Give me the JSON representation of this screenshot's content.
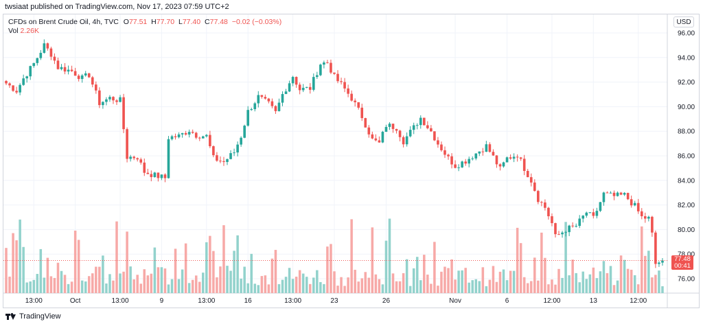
{
  "header": {
    "published": "twsiaat published on TradingView.com, Nov 17, 2023 07:59 UTC+2"
  },
  "legend": {
    "symbol": "CFDs on Brent Crude Oil, 4h, TVC",
    "o_label": "O",
    "o_value": "77.51",
    "h_label": "H",
    "h_value": "77.70",
    "l_label": "L",
    "l_value": "77.40",
    "c_label": "C",
    "c_value": "77.48",
    "change": "−0.02 (−0.03%)",
    "vol_label": "Vol",
    "vol_value": "2.26K"
  },
  "currency": "USD",
  "last_price": {
    "value": "77.48",
    "countdown": "00:41"
  },
  "footer": {
    "brand": "TradingView"
  },
  "colors": {
    "up": "#26a69a",
    "down": "#ef5350",
    "up_volume": "#92d2cc",
    "down_volume": "#f7a9a7",
    "grid": "#f0f3fa"
  },
  "chart_data": {
    "type": "candlestick",
    "title": "CFDs on Brent Crude Oil, 4h, TVC",
    "ylim": [
      74.8,
      97.0
    ],
    "y_ticks": [
      76.0,
      78.0,
      80.0,
      82.0,
      84.0,
      86.0,
      88.0,
      90.0,
      92.0,
      94.0,
      96.0
    ],
    "y_tick_labels": [
      "76.00",
      "78.00",
      "80.00",
      "82.00",
      "84.00",
      "86.00",
      "88.00",
      "90.00",
      "92.00",
      "94.00",
      "96.00"
    ],
    "x_tick_labels": [
      {
        "label": "13:00",
        "bar": 8
      },
      {
        "label": "Oct",
        "bar": 20
      },
      {
        "label": "13:00",
        "bar": 33
      },
      {
        "label": "9",
        "bar": 45
      },
      {
        "label": "13:00",
        "bar": 58
      },
      {
        "label": "16",
        "bar": 70
      },
      {
        "label": "13:00",
        "bar": 83
      },
      {
        "label": "23",
        "bar": 95
      },
      {
        "label": "26",
        "bar": 110
      },
      {
        "label": "Nov",
        "bar": 130
      },
      {
        "label": "6",
        "bar": 145
      },
      {
        "label": "12:00",
        "bar": 158
      },
      {
        "label": "13",
        "bar": 170
      },
      {
        "label": "12:00",
        "bar": 183
      }
    ],
    "close_path": [
      [
        0,
        91.9
      ],
      [
        3,
        91.3
      ],
      [
        5,
        92.3
      ],
      [
        8,
        93.5
      ],
      [
        11,
        95.0
      ],
      [
        13,
        94.3
      ],
      [
        15,
        93.2
      ],
      [
        19,
        92.9
      ],
      [
        22,
        92.3
      ],
      [
        24,
        92.6
      ],
      [
        27,
        90.3
      ],
      [
        30,
        90.7
      ],
      [
        33,
        90.5
      ],
      [
        35,
        85.9
      ],
      [
        38,
        85.9
      ],
      [
        40,
        84.7
      ],
      [
        43,
        84.4
      ],
      [
        46,
        84.2
      ],
      [
        47,
        87.5
      ],
      [
        50,
        87.6
      ],
      [
        53,
        88.1
      ],
      [
        55,
        87.7
      ],
      [
        58,
        87.6
      ],
      [
        60,
        85.8
      ],
      [
        63,
        85.5
      ],
      [
        66,
        86.3
      ],
      [
        68,
        87.6
      ],
      [
        70,
        89.6
      ],
      [
        73,
        90.8
      ],
      [
        76,
        90.2
      ],
      [
        78,
        89.5
      ],
      [
        80,
        91.0
      ],
      [
        83,
        92.5
      ],
      [
        85,
        91.4
      ],
      [
        88,
        91.5
      ],
      [
        91,
        93.5
      ],
      [
        93,
        93.6
      ],
      [
        95,
        92.4
      ],
      [
        97,
        91.8
      ],
      [
        100,
        90.7
      ],
      [
        103,
        89.2
      ],
      [
        106,
        87.3
      ],
      [
        108,
        87.0
      ],
      [
        110,
        88.5
      ],
      [
        113,
        88.3
      ],
      [
        115,
        87.2
      ],
      [
        118,
        88.3
      ],
      [
        120,
        89.1
      ],
      [
        123,
        88.0
      ],
      [
        125,
        87.0
      ],
      [
        128,
        85.8
      ],
      [
        130,
        85.2
      ],
      [
        133,
        85.6
      ],
      [
        136,
        86.2
      ],
      [
        139,
        86.8
      ],
      [
        141,
        85.9
      ],
      [
        143,
        84.9
      ],
      [
        145,
        85.8
      ],
      [
        148,
        86.1
      ],
      [
        150,
        85.0
      ],
      [
        152,
        84.0
      ],
      [
        154,
        82.5
      ],
      [
        156,
        81.8
      ],
      [
        158,
        80.5
      ],
      [
        159,
        79.4
      ],
      [
        162,
        80.0
      ],
      [
        165,
        80.3
      ],
      [
        168,
        81.4
      ],
      [
        170,
        80.9
      ],
      [
        173,
        82.9
      ],
      [
        176,
        82.7
      ],
      [
        179,
        82.8
      ],
      [
        182,
        81.9
      ],
      [
        184,
        81.0
      ],
      [
        186,
        80.9
      ],
      [
        187,
        79.6
      ],
      [
        188,
        77.2
      ],
      [
        190,
        77.48
      ]
    ],
    "volume_ylim": [
      0,
      8000
    ],
    "volume_seed": 7,
    "series": [
      {
        "name": "Vol",
        "last": "2.26K"
      }
    ]
  }
}
